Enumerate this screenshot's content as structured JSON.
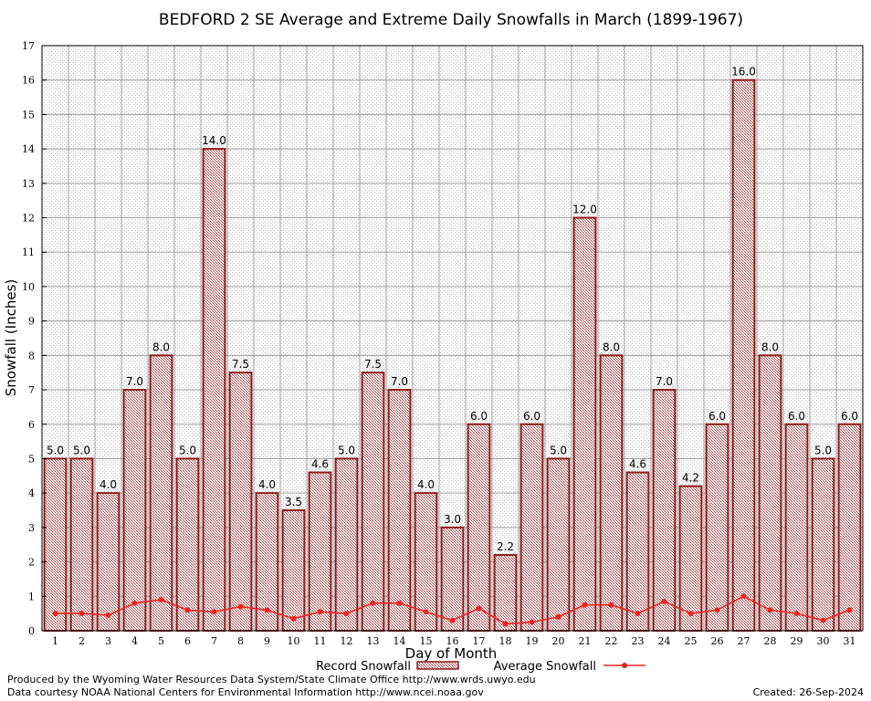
{
  "chart_data": {
    "type": "bar",
    "title": "BEDFORD 2 SE Average and Extreme Daily Snowfalls in March (1899-1967)",
    "xlabel": "Day of Month",
    "ylabel": "Snowfall (Inches)",
    "ylim": [
      0,
      17
    ],
    "yticks": [
      0,
      1,
      2,
      3,
      4,
      5,
      6,
      7,
      8,
      9,
      10,
      11,
      12,
      13,
      14,
      15,
      16,
      17
    ],
    "categories": [
      "1",
      "2",
      "3",
      "4",
      "5",
      "6",
      "7",
      "8",
      "9",
      "10",
      "11",
      "12",
      "13",
      "14",
      "15",
      "16",
      "17",
      "18",
      "19",
      "20",
      "21",
      "22",
      "23",
      "24",
      "25",
      "26",
      "27",
      "28",
      "29",
      "30",
      "31"
    ],
    "series": [
      {
        "name": "Record Snowfall",
        "type": "bar",
        "color": "#8b1a1a",
        "values": [
          5.0,
          5.0,
          4.0,
          7.0,
          8.0,
          5.0,
          14.0,
          7.5,
          4.0,
          3.5,
          4.6,
          5.0,
          7.5,
          7.0,
          4.0,
          3.0,
          6.0,
          2.2,
          6.0,
          5.0,
          12.0,
          8.0,
          4.6,
          7.0,
          4.2,
          6.0,
          16.0,
          8.0,
          6.0,
          5.0,
          6.0
        ],
        "labels": [
          "5.0",
          "5.0",
          "4.0",
          "7.0",
          "8.0",
          "5.0",
          "14.0",
          "7.5",
          "4.0",
          "3.5",
          "4.6",
          "5.0",
          "7.5",
          "7.0",
          "4.0",
          "3.0",
          "6.0",
          "2.2",
          "6.0",
          "5.0",
          "12.0",
          "8.0",
          "4.6",
          "7.0",
          "4.2",
          "6.0",
          "16.0",
          "8.0",
          "6.0",
          "5.0",
          "6.0"
        ]
      },
      {
        "name": "Average Snowfall",
        "type": "line",
        "color": "#ee2222",
        "values": [
          0.5,
          0.5,
          0.45,
          0.8,
          0.9,
          0.6,
          0.55,
          0.7,
          0.6,
          0.35,
          0.55,
          0.5,
          0.8,
          0.8,
          0.55,
          0.3,
          0.65,
          0.2,
          0.25,
          0.4,
          0.75,
          0.75,
          0.5,
          0.85,
          0.5,
          0.6,
          1.0,
          0.6,
          0.5,
          0.3,
          0.6
        ]
      }
    ],
    "grid": true,
    "legend_position": "bottom-center"
  },
  "footer": {
    "producer": "Produced by the Wyoming Water Resources Data System/State Climate Office http://www.wrds.uwyo.edu",
    "source": "Data courtesy NOAA National Centers for Environmental Information http://www.ncei.noaa.gov",
    "created": "Created:  26-Sep-2024"
  }
}
